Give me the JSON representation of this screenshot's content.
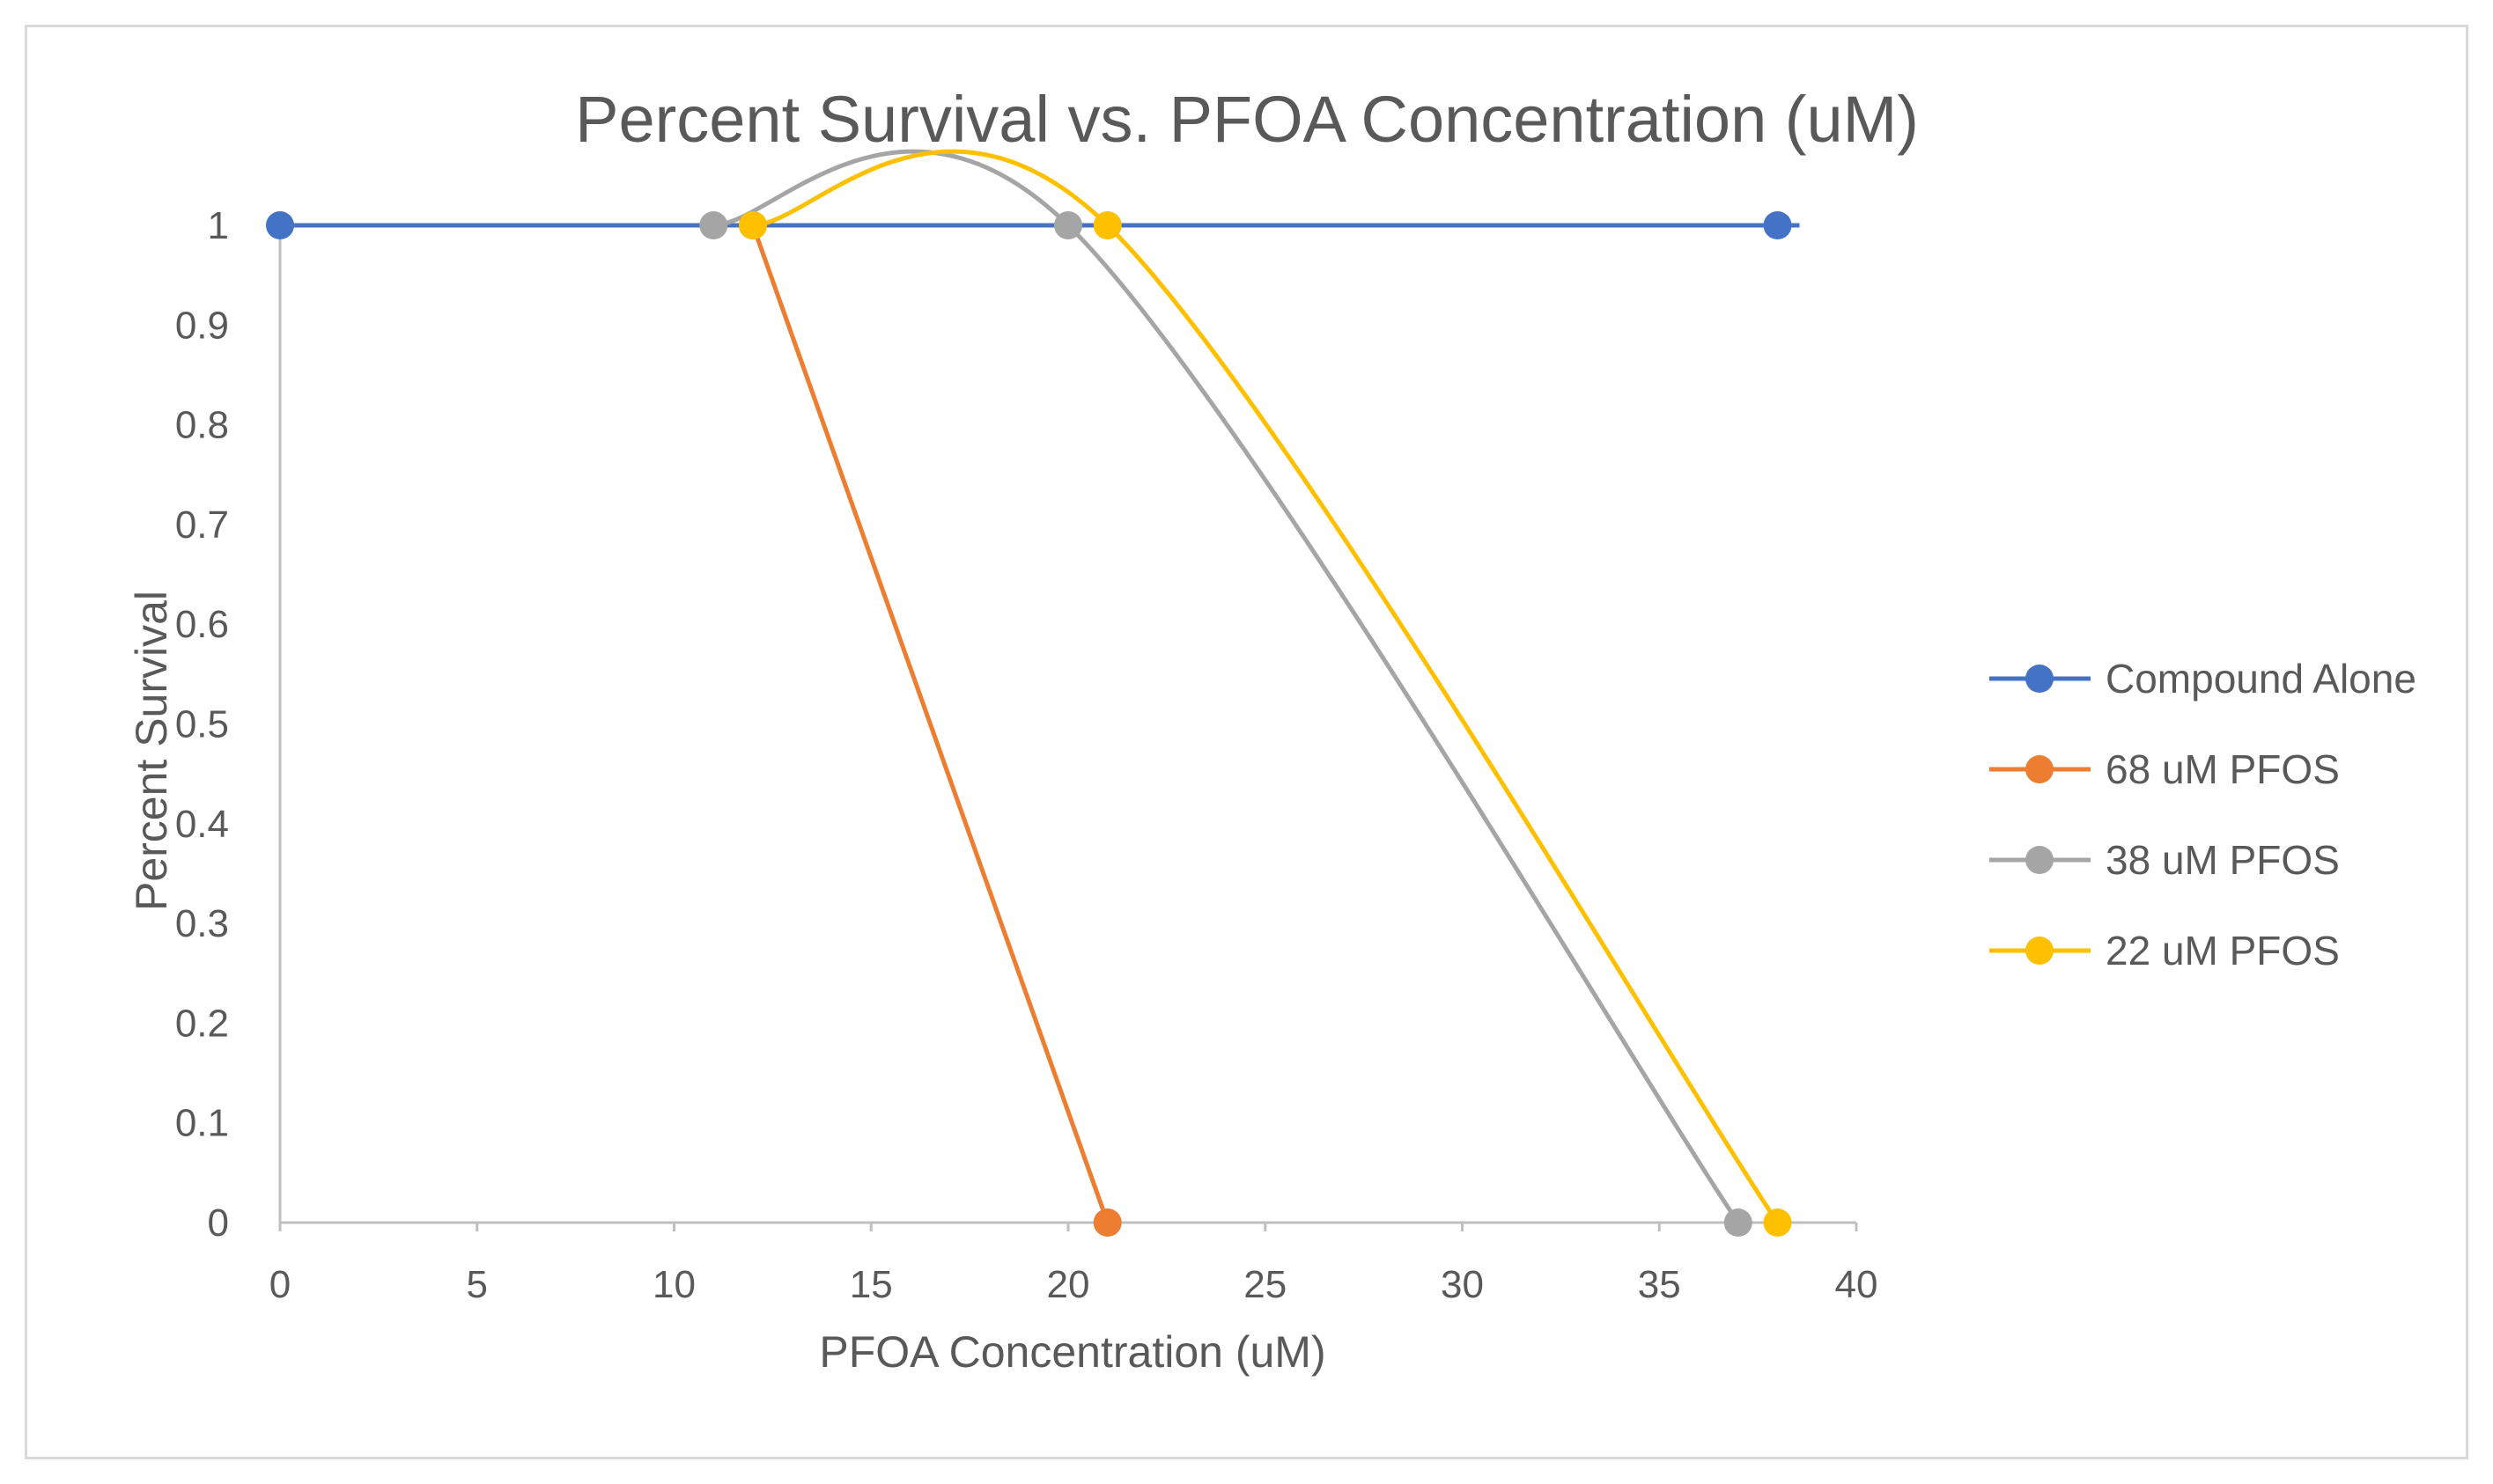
{
  "chart_data": {
    "type": "line",
    "title": "Percent Survival vs. PFOA Concentration (uM)",
    "xlabel": "PFOA Concentration (uM)",
    "ylabel": "Percent Survival",
    "xlim": [
      0,
      40
    ],
    "ylim": [
      0,
      1
    ],
    "x_ticks": [
      "0",
      "5",
      "10",
      "15",
      "20",
      "25",
      "30",
      "35",
      "40"
    ],
    "y_ticks": [
      "0",
      "0.1",
      "0.2",
      "0.3",
      "0.4",
      "0.5",
      "0.6",
      "0.7",
      "0.8",
      "0.9",
      "1"
    ],
    "grid": false,
    "legend_position": "right",
    "series": [
      {
        "name": "Compound Alone",
        "color": "#4472c4",
        "smooth": false,
        "points": [
          [
            0,
            1
          ],
          [
            38,
            1
          ]
        ]
      },
      {
        "name": "68 uM PFOS",
        "color": "#ed7d31",
        "smooth": false,
        "points": [
          [
            12,
            1
          ],
          [
            21,
            0
          ]
        ]
      },
      {
        "name": "38 uM PFOS",
        "color": "#a5a5a5",
        "smooth": true,
        "points": [
          [
            11,
            1
          ],
          [
            20,
            1
          ],
          [
            37,
            0
          ]
        ]
      },
      {
        "name": "22 uM PFOS",
        "color": "#ffc000",
        "smooth": true,
        "points": [
          [
            12,
            1
          ],
          [
            21,
            1
          ],
          [
            38,
            0
          ]
        ]
      }
    ]
  }
}
